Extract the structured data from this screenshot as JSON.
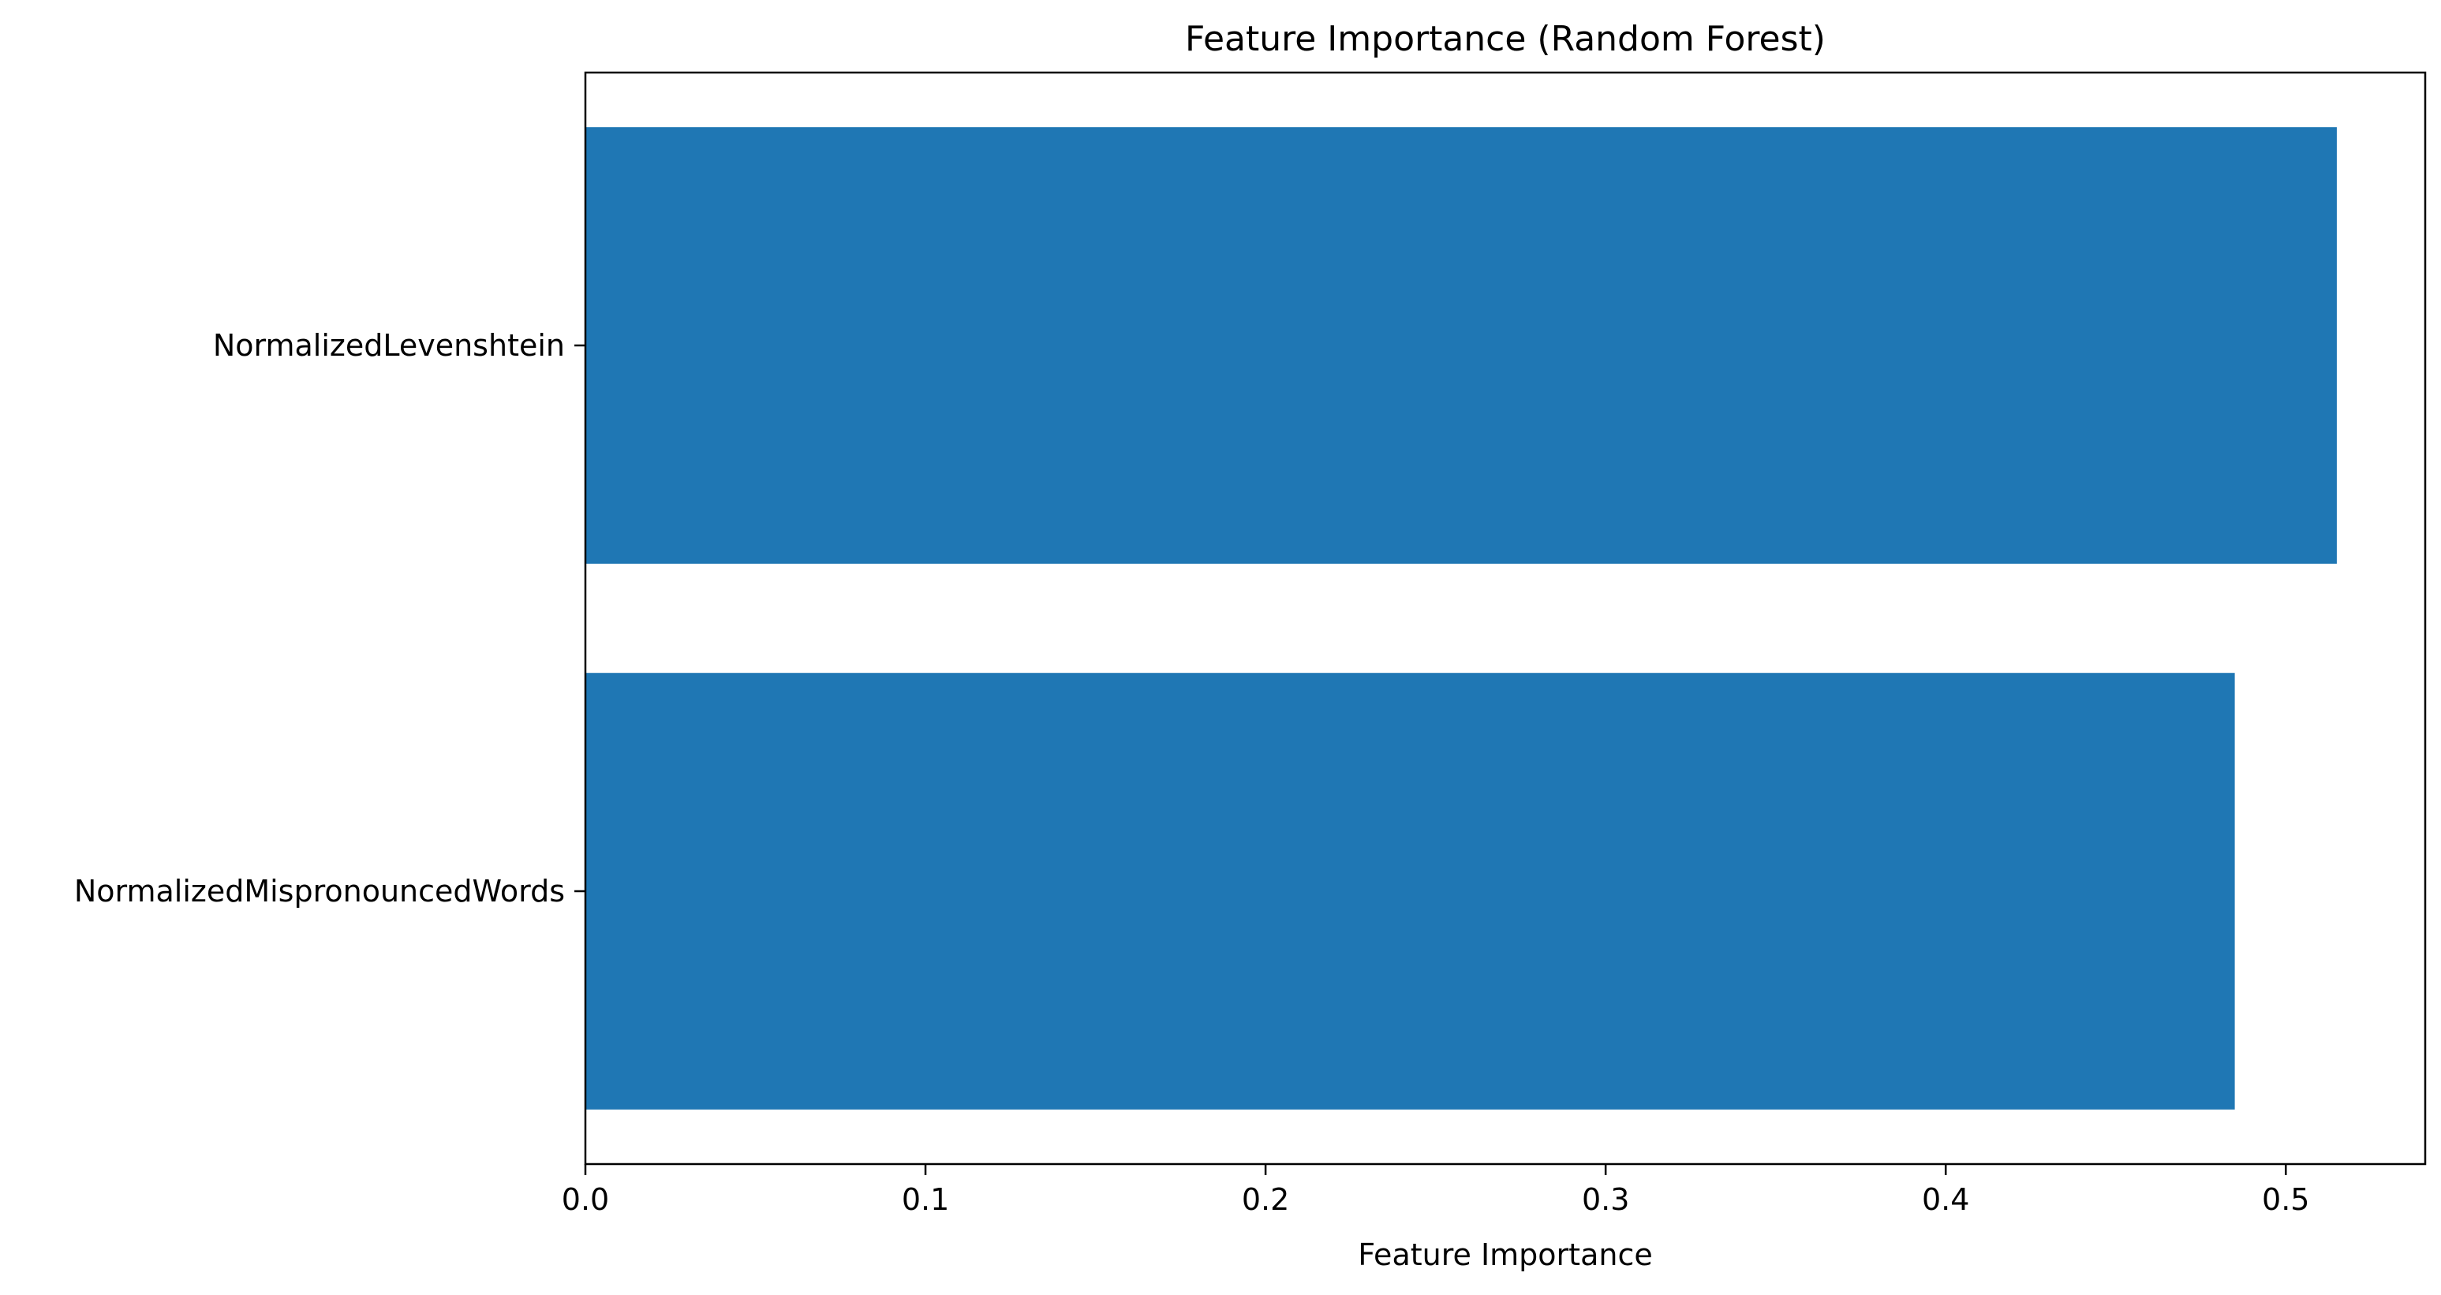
{
  "chart_data": {
    "type": "bar",
    "orientation": "horizontal",
    "title": "Feature Importance (Random Forest)",
    "xlabel": "Feature Importance",
    "ylabel": "",
    "categories": [
      "NormalizedLevenshtein",
      "NormalizedMispronouncedWords"
    ],
    "values": [
      0.515,
      0.485
    ],
    "xlim": [
      0.0,
      0.541
    ],
    "xticks": [
      0.0,
      0.1,
      0.2,
      0.3,
      0.4,
      0.5
    ],
    "xtick_labels": [
      "0.0",
      "0.1",
      "0.2",
      "0.3",
      "0.4",
      "0.5"
    ],
    "grid": false,
    "legend": "none",
    "bar_color": "#1f77b4"
  }
}
